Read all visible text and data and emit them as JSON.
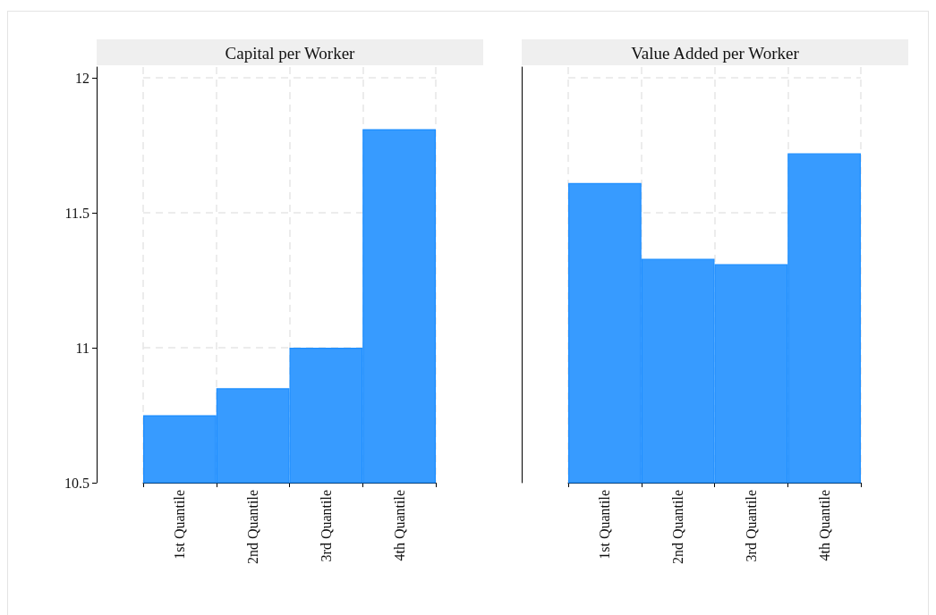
{
  "chart_data": [
    {
      "type": "bar",
      "title": "Capital per Worker",
      "categories": [
        "1st Quantile",
        "2nd Quantile",
        "3rd Quantile",
        "4th Quantile"
      ],
      "values": [
        10.75,
        10.85,
        11.0,
        11.81
      ],
      "color": "#3399ff",
      "ylim": [
        10.5,
        12.04
      ],
      "yticks": [
        10.5,
        11,
        11.5,
        12
      ],
      "grid": true
    },
    {
      "type": "bar",
      "title": "Value Added per Worker",
      "categories": [
        "1st Quantile",
        "2nd Quantile",
        "3rd Quantile",
        "4th Quantile"
      ],
      "values": [
        11.61,
        11.33,
        11.31,
        11.72
      ],
      "color": "#3399ff",
      "ylim": [
        10.5,
        12.04
      ],
      "yticks": [
        10.5,
        11,
        11.5,
        12
      ],
      "grid": true,
      "tick_labels": "x"
    }
  ]
}
